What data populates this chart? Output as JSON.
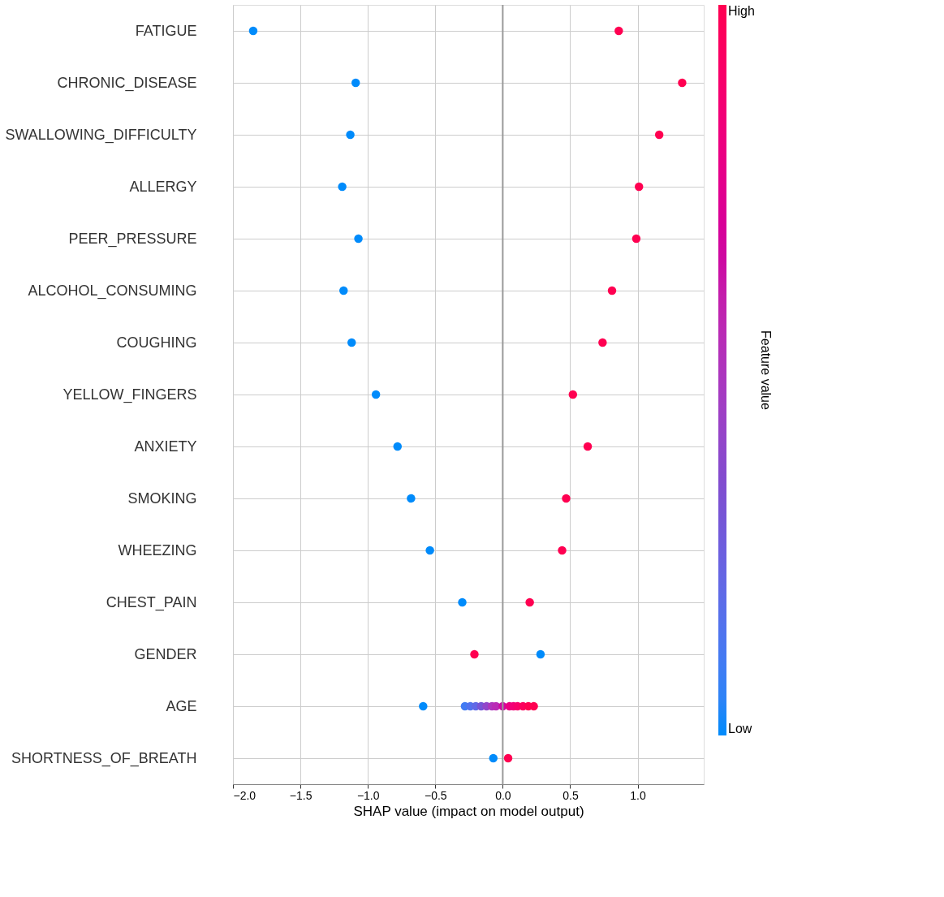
{
  "chart_data": {
    "type": "scatter",
    "orientation": "horizontal",
    "xlabel": "SHAP value (impact on model output)",
    "clabel": "Feature value",
    "categories": [
      "FATIGUE",
      "CHRONIC_DISEASE",
      "SWALLOWING_DIFFICULTY",
      "ALLERGY",
      "PEER_PRESSURE",
      "ALCOHOL_CONSUMING",
      "COUGHING",
      "YELLOW_FINGERS",
      "ANXIETY",
      "SMOKING",
      "WHEEZING",
      "CHEST_PAIN",
      "GENDER",
      "AGE",
      "SHORTNESS_OF_BREATH"
    ],
    "series": [
      {
        "values": [
          -1.85,
          -1.09,
          -1.13,
          -1.19,
          -1.07,
          -1.18,
          -1.12,
          -0.94,
          -0.78,
          -0.68,
          -0.54,
          -0.3,
          0.28,
          -0.59,
          -0.07
        ],
        "cvalues": [
          0,
          0,
          0,
          0,
          0,
          0,
          0,
          0,
          0,
          0,
          0,
          0,
          0,
          0,
          0
        ]
      },
      {
        "values": [
          0.86,
          1.33,
          1.16,
          1.01,
          0.99,
          0.81,
          0.74,
          0.52,
          0.63,
          0.47,
          0.44,
          0.2,
          -0.21,
          0.23,
          0.04
        ],
        "cvalues": [
          1,
          1,
          1,
          1,
          1,
          1,
          1,
          1,
          1,
          1,
          1,
          1,
          1,
          1,
          1
        ]
      },
      {
        "values": [
          null,
          null,
          null,
          null,
          null,
          null,
          null,
          null,
          null,
          null,
          null,
          null,
          null,
          -0.28,
          null
        ],
        "cvalues": [
          null,
          null,
          null,
          null,
          null,
          null,
          null,
          null,
          null,
          null,
          null,
          null,
          null,
          0.1,
          null
        ]
      },
      {
        "values": [
          null,
          null,
          null,
          null,
          null,
          null,
          null,
          null,
          null,
          null,
          null,
          null,
          null,
          -0.24,
          null
        ],
        "cvalues": [
          null,
          null,
          null,
          null,
          null,
          null,
          null,
          null,
          null,
          null,
          null,
          null,
          null,
          0.15,
          null
        ]
      },
      {
        "values": [
          null,
          null,
          null,
          null,
          null,
          null,
          null,
          null,
          null,
          null,
          null,
          null,
          null,
          -0.2,
          null
        ],
        "cvalues": [
          null,
          null,
          null,
          null,
          null,
          null,
          null,
          null,
          null,
          null,
          null,
          null,
          null,
          0.2,
          null
        ]
      },
      {
        "values": [
          null,
          null,
          null,
          null,
          null,
          null,
          null,
          null,
          null,
          null,
          null,
          null,
          null,
          -0.16,
          null
        ],
        "cvalues": [
          null,
          null,
          null,
          null,
          null,
          null,
          null,
          null,
          null,
          null,
          null,
          null,
          null,
          0.3,
          null
        ]
      },
      {
        "values": [
          null,
          null,
          null,
          null,
          null,
          null,
          null,
          null,
          null,
          null,
          null,
          null,
          null,
          -0.12,
          null
        ],
        "cvalues": [
          null,
          null,
          null,
          null,
          null,
          null,
          null,
          null,
          null,
          null,
          null,
          null,
          null,
          0.4,
          null
        ]
      },
      {
        "values": [
          null,
          null,
          null,
          null,
          null,
          null,
          null,
          null,
          null,
          null,
          null,
          null,
          null,
          -0.08,
          null
        ],
        "cvalues": [
          null,
          null,
          null,
          null,
          null,
          null,
          null,
          null,
          null,
          null,
          null,
          null,
          null,
          0.5,
          null
        ]
      },
      {
        "values": [
          null,
          null,
          null,
          null,
          null,
          null,
          null,
          null,
          null,
          null,
          null,
          null,
          null,
          -0.05,
          null
        ],
        "cvalues": [
          null,
          null,
          null,
          null,
          null,
          null,
          null,
          null,
          null,
          null,
          null,
          null,
          null,
          0.55,
          null
        ]
      },
      {
        "values": [
          null,
          null,
          null,
          null,
          null,
          null,
          null,
          null,
          null,
          null,
          null,
          null,
          null,
          0.0,
          null
        ],
        "cvalues": [
          null,
          null,
          null,
          null,
          null,
          null,
          null,
          null,
          null,
          null,
          null,
          null,
          null,
          0.65,
          null
        ]
      },
      {
        "values": [
          null,
          null,
          null,
          null,
          null,
          null,
          null,
          null,
          null,
          null,
          null,
          null,
          null,
          0.05,
          null
        ],
        "cvalues": [
          null,
          null,
          null,
          null,
          null,
          null,
          null,
          null,
          null,
          null,
          null,
          null,
          null,
          0.8,
          null
        ]
      },
      {
        "values": [
          null,
          null,
          null,
          null,
          null,
          null,
          null,
          null,
          null,
          null,
          null,
          null,
          null,
          0.08,
          null
        ],
        "cvalues": [
          null,
          null,
          null,
          null,
          null,
          null,
          null,
          null,
          null,
          null,
          null,
          null,
          null,
          0.85,
          null
        ]
      },
      {
        "values": [
          null,
          null,
          null,
          null,
          null,
          null,
          null,
          null,
          null,
          null,
          null,
          null,
          null,
          0.11,
          null
        ],
        "cvalues": [
          null,
          null,
          null,
          null,
          null,
          null,
          null,
          null,
          null,
          null,
          null,
          null,
          null,
          0.9,
          null
        ]
      },
      {
        "values": [
          null,
          null,
          null,
          null,
          null,
          null,
          null,
          null,
          null,
          null,
          null,
          null,
          null,
          0.15,
          null
        ],
        "cvalues": [
          null,
          null,
          null,
          null,
          null,
          null,
          null,
          null,
          null,
          null,
          null,
          null,
          null,
          0.95,
          null
        ]
      },
      {
        "values": [
          null,
          null,
          null,
          null,
          null,
          null,
          null,
          null,
          null,
          null,
          null,
          null,
          null,
          0.19,
          null
        ],
        "cvalues": [
          null,
          null,
          null,
          null,
          null,
          null,
          null,
          null,
          null,
          null,
          null,
          null,
          null,
          1.0,
          null
        ]
      }
    ],
    "xlim": [
      -2.0,
      1.49
    ],
    "xticks": [
      {
        "value": -2.0,
        "label": "−2.0"
      },
      {
        "value": -1.5,
        "label": "−1.5"
      },
      {
        "value": -1.0,
        "label": "−1.0"
      },
      {
        "value": -0.5,
        "label": "−0.5"
      },
      {
        "value": 0.0,
        "label": "0.0"
      },
      {
        "value": 0.5,
        "label": "0.5"
      },
      {
        "value": 1.0,
        "label": "1.0"
      }
    ],
    "clim": [
      0,
      1
    ],
    "cticks": [
      {
        "value": 0,
        "label": "Low"
      },
      {
        "value": 1,
        "label": "High"
      }
    ],
    "ref_lines": [
      {
        "axis": "x",
        "value": 0,
        "color": "#999999"
      }
    ],
    "grid": true,
    "marker": "circle"
  }
}
